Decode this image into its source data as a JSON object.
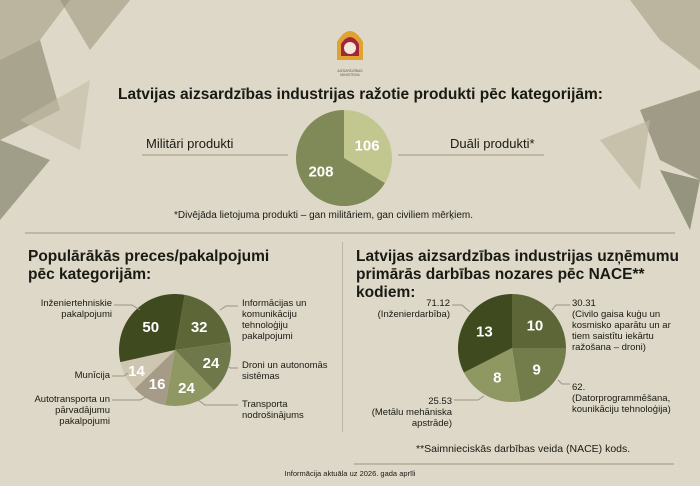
{
  "logo": {
    "text": "AIZSARDZĪBAS MINISTRIJA",
    "colors": [
      "#a3253a",
      "#e0a230"
    ]
  },
  "colors": {
    "background": "#ddd8c7",
    "dark": "#3f4a1f",
    "olive": "#5c6636",
    "mid": "#737c4b",
    "light": "#8f9762",
    "taupe": "#a69b86",
    "pale": "#cfc6b2"
  },
  "top": {
    "title": "Latvijas aizsardzības industrijas ražotie produkti pēc kategorijām:",
    "footnote": "*Divējāda lietojuma produkti – gan militāriem, gan civiliem mērķiem."
  },
  "left": {
    "title_line1": "Populārākās preces/pakalpojumi",
    "title_line2": "pēc kategorijām:"
  },
  "right": {
    "title_line1": "Latvijas aizsardzības industrijas uzņēmumu",
    "title_line2": "primārās darbības nozares pēc NACE** kodiem:",
    "footnote": "**Saimnieciskās darbības veida (NACE) kods."
  },
  "footer": "Informācija aktuāla uz 2026. gada aprīli",
  "chart_data": [
    {
      "type": "pie",
      "title": "Latvijas aizsardzības industrijas ražotie produkti pēc kategorijām:",
      "slices": [
        {
          "label": "Duāli produkti*",
          "value": 106,
          "color": "#c2c68f"
        },
        {
          "label": "Militāri produkti",
          "value": 208,
          "color": "#808a58"
        }
      ]
    },
    {
      "type": "pie",
      "title": "Populārākās preces/pakalpojumi pēc kategorijām:",
      "slices": [
        {
          "label": "Informācijas un komunikāciju tehnoloģiju pakalpojumi",
          "value": 32,
          "color": "#5c6636"
        },
        {
          "label": "Droni un autonomās sistēmas",
          "value": 24,
          "color": "#6f784a"
        },
        {
          "label": "Transporta nodrošinājums",
          "value": 24,
          "color": "#8f9762"
        },
        {
          "label": "Autotransporta un pārvadājumu pakalpojumi",
          "value": 16,
          "color": "#a69b86"
        },
        {
          "label": "Munīcija",
          "value": 14,
          "color": "#cfc6b2"
        },
        {
          "label": "Inženiertehniskie pakalpojumi",
          "value": 50,
          "color": "#3f4a1f"
        }
      ]
    },
    {
      "type": "pie",
      "title": "Latvijas aizsardzības industrijas uzņēmumu primārās darbības nozares pēc NACE** kodiem:",
      "slices": [
        {
          "code": "30.31",
          "label": "(Civilo gaisa kuģu un kosmisko aparātu un ar tiem saistītu iekārtu ražošana – droni)",
          "value": 10,
          "color": "#5c6636"
        },
        {
          "code": "62.",
          "label": "(Datorprogrammēšana, kounikāciju tehnoloģija)",
          "value": 9,
          "color": "#737c4b"
        },
        {
          "code": "25.53",
          "label": "(Metālu mehāniska apstrāde)",
          "value": 8,
          "color": "#8f9762"
        },
        {
          "code": "71.12",
          "label": "(Inženierdarbība)",
          "value": 13,
          "color": "#3f4a1f"
        }
      ]
    }
  ]
}
